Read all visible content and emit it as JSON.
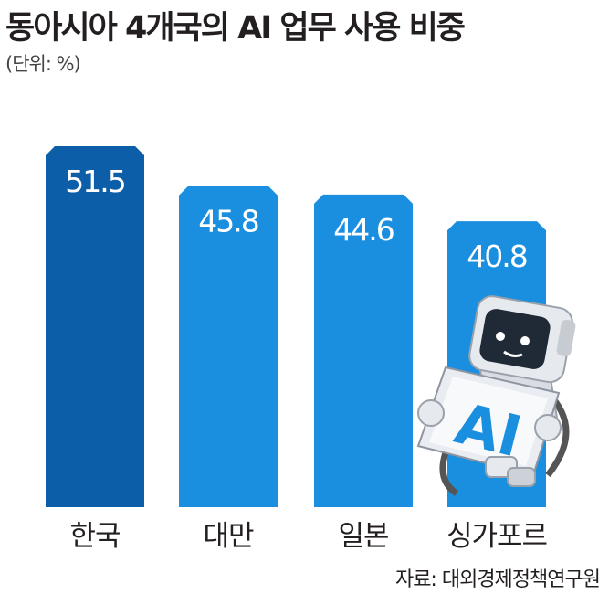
{
  "header": {
    "title": "동아시아 4개국의 AI 업무 사용 비중",
    "unit": "(단위: %)"
  },
  "footer": {
    "source": "자료: 대외경제정책연구원"
  },
  "illustration": {
    "robot_sign_text": "AI"
  },
  "colors": {
    "highlight_bar": "#0d5ea8",
    "bar": "#1a8fe0"
  },
  "chart_data": {
    "type": "bar",
    "title": "동아시아 4개국의 AI 업무 사용 비중",
    "categories": [
      "한국",
      "대만",
      "일본",
      "싱가포르"
    ],
    "values": [
      51.5,
      45.8,
      44.6,
      40.8
    ],
    "value_labels": [
      "51.5",
      "45.8",
      "44.6",
      "40.8"
    ],
    "ylim": [
      0,
      51.5
    ],
    "grid": false,
    "legend": "none"
  }
}
